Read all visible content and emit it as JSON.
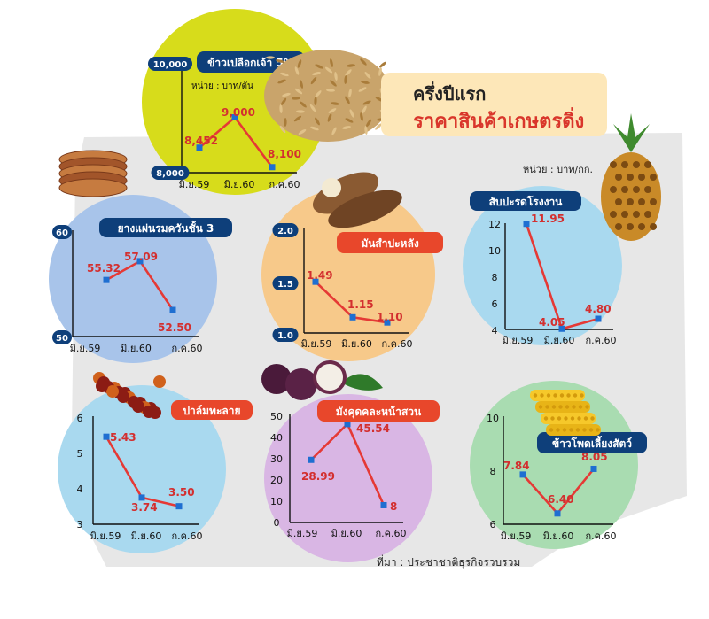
{
  "header": {
    "title_line1": "ครึ่งปีแรก",
    "title_line2": "ราคาสินค้าเกษตรดิ่ง",
    "unit_note": "หน่วย : บาท/กก.",
    "source": "ที่มา : ประชาชาติธุรกิจรวบรวม"
  },
  "colors": {
    "title_red": "#d9362b",
    "line_red": "#e53935",
    "marker_blue": "#1f6fd1",
    "label_navy": "#0e3f7a",
    "rice_circle": "#d7dc1b",
    "rubber_circle": "#a8c4ea",
    "cassava_circle": "#f7c98a",
    "pineapple_circle": "#a9d9ef",
    "palm_circle": "#a9d9ef",
    "mangosteen_circle": "#d9b6e4",
    "corn_circle": "#a9dcb1"
  },
  "chart_data": [
    {
      "type": "line",
      "title": "ข้าวเปลือกเจ้า 5%",
      "unit": "หน่วย : บาท/ตัน",
      "categories": [
        "มิ.ย.59",
        "มิ.ย.60",
        "ก.ค.60"
      ],
      "values": [
        8452,
        9000,
        8100
      ],
      "value_labels": [
        "8,452",
        "9,000",
        "8,100"
      ],
      "ylim": [
        8000,
        10000
      ],
      "ytick_labels": [
        "10,000",
        "8,000"
      ]
    },
    {
      "type": "line",
      "title": "ยางแผ่นรมควันชั้น 3",
      "categories": [
        "มิ.ย.59",
        "มิ.ย.60",
        "ก.ค.60"
      ],
      "values": [
        55.32,
        57.09,
        52.5
      ],
      "value_labels": [
        "55.32",
        "57.09",
        "52.50"
      ],
      "ylim": [
        50,
        60
      ],
      "ytick_labels": [
        "60",
        "50"
      ]
    },
    {
      "type": "line",
      "title": "มันสำปะหลัง",
      "categories": [
        "มิ.ย.59",
        "มิ.ย.60",
        "ก.ค.60"
      ],
      "values": [
        1.49,
        1.15,
        1.1
      ],
      "value_labels": [
        "1.49",
        "1.15",
        "1.10"
      ],
      "ylim": [
        1.0,
        2.0
      ],
      "ytick_labels": [
        "2.0",
        "1.5",
        "1.0"
      ]
    },
    {
      "type": "line",
      "title": "สับปะรดโรงงาน",
      "categories": [
        "มิ.ย.59",
        "มิ.ย.60",
        "ก.ค.60"
      ],
      "values": [
        11.95,
        4.05,
        4.8
      ],
      "value_labels": [
        "11.95",
        "4.05",
        "4.80"
      ],
      "ylim": [
        4,
        12
      ],
      "ytick_labels": [
        "12",
        "10",
        "8",
        "6",
        "4"
      ]
    },
    {
      "type": "line",
      "title": "ปาล์มทะลาย",
      "categories": [
        "มิ.ย.59",
        "มิ.ย.60",
        "ก.ค.60"
      ],
      "values": [
        5.43,
        3.74,
        3.5
      ],
      "value_labels": [
        "5.43",
        "3.74",
        "3.50"
      ],
      "ylim": [
        3,
        6
      ],
      "ytick_labels": [
        "6",
        "5",
        "4",
        "3"
      ]
    },
    {
      "type": "line",
      "title": "มังคุดคละหน้าสวน",
      "categories": [
        "มิ.ย.59",
        "มิ.ย.60",
        "ก.ค.60"
      ],
      "values": [
        28.99,
        45.54,
        8
      ],
      "value_labels": [
        "28.99",
        "45.54",
        "8"
      ],
      "ylim": [
        0,
        50
      ],
      "ytick_labels": [
        "50",
        "40",
        "30",
        "20",
        "10",
        "0"
      ]
    },
    {
      "type": "line",
      "title": "ข้าวโพดเลี้ยงสัตว์",
      "categories": [
        "มิ.ย.59",
        "มิ.ย.60",
        "ก.ค.60"
      ],
      "values": [
        7.84,
        6.4,
        8.05
      ],
      "value_labels": [
        "7.84",
        "6.40",
        "8.05"
      ],
      "ylim": [
        6,
        10
      ],
      "ytick_labels": [
        "10",
        "8",
        "6"
      ]
    }
  ]
}
